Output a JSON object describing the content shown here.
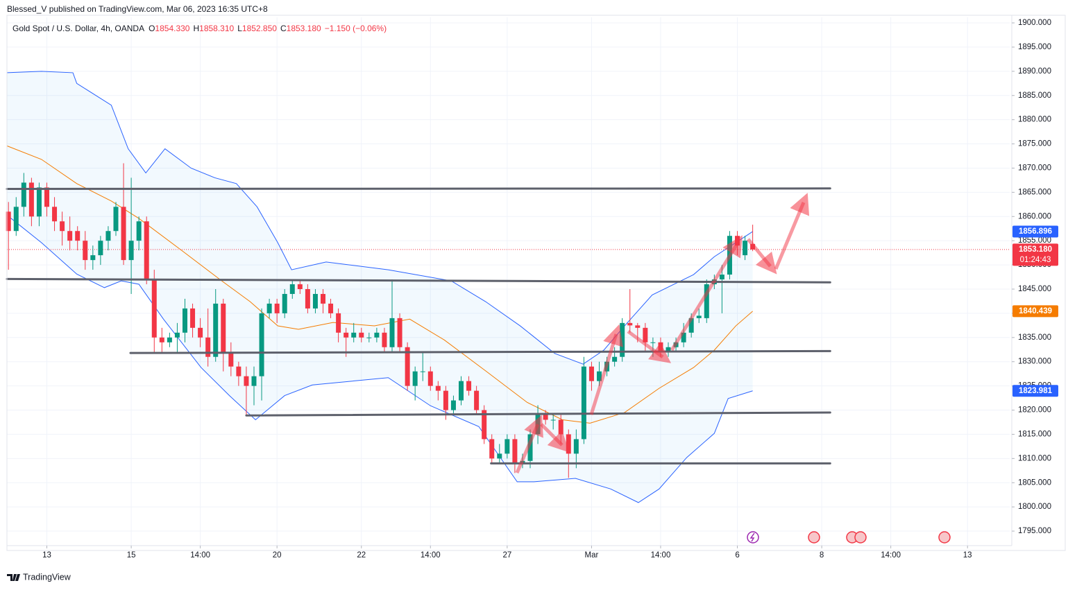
{
  "header": {
    "publisher": "Blessed_V published on TradingView.com, Mar 06, 2023 16:35 UTC+8"
  },
  "footer": {
    "brand": "TradingView"
  },
  "chart_data": {
    "type": "candlestick",
    "symbol": "Gold Spot / U.S. Dollar, 4h, OANDA",
    "legend_values": [
      {
        "key": "O",
        "value": "1854.330"
      },
      {
        "key": "H",
        "value": "1858.310"
      },
      {
        "key": "L",
        "value": "1852.850"
      },
      {
        "key": "C",
        "value": "1853.180"
      }
    ],
    "change": "−1.150 (−0.06%)",
    "open": [
      1861,
      1857,
      1862,
      1867,
      1860,
      1866,
      1862,
      1859,
      1857,
      1857,
      1855,
      1851,
      1852,
      1855,
      1857,
      1862,
      1851,
      1855,
      1859,
      1847,
      1835,
      1834,
      1835,
      1836,
      1841,
      1837,
      1835,
      1831,
      1842,
      1832,
      1829,
      1827,
      1825,
      1827,
      1840,
      1842,
      1840,
      1844,
      1846,
      1845,
      1841,
      1844,
      1842,
      1840,
      1836,
      1835,
      1836,
      1835,
      1835,
      1836,
      1833,
      1839,
      1833,
      1825,
      1828,
      1828,
      1825,
      1824,
      1820,
      1822,
      1826,
      1824,
      1820,
      1814,
      1810,
      1811,
      1814,
      1809,
      1809.5,
      1815,
      1819,
      1818,
      1818,
      1815,
      1811,
      1814,
      1829,
      1826,
      1828,
      1830,
      1831,
      1838,
      1837.5,
      1837,
      1834,
      1834,
      1832,
      1833,
      1834,
      1836,
      1839,
      1839,
      1846,
      1847,
      1848,
      1856,
      1852,
      1854.33
    ],
    "high": [
      1863,
      1864,
      1869,
      1868,
      1867,
      1867,
      1864,
      1861,
      1860,
      1858,
      1857,
      1854,
      1856,
      1858,
      1863,
      1871,
      1868,
      1860,
      1860,
      1849,
      1837,
      1836,
      1838,
      1843,
      1842,
      1839,
      1841,
      1845,
      1843,
      1834,
      1830,
      1829,
      1829,
      1841,
      1843,
      1843,
      1845,
      1847,
      1847,
      1846,
      1845,
      1845,
      1843,
      1841,
      1837,
      1838,
      1837,
      1836,
      1837,
      1837,
      1847,
      1840,
      1834,
      1829,
      1832,
      1829,
      1826,
      1825,
      1823,
      1827,
      1827,
      1825,
      1821,
      1815,
      1813,
      1815,
      1815,
      1811,
      1816,
      1821,
      1820,
      1819,
      1819,
      1816,
      1816,
      1831,
      1830,
      1830,
      1831,
      1833,
      1839,
      1845,
      1838,
      1838,
      1835,
      1835,
      1834,
      1835,
      1838,
      1840,
      1841,
      1847,
      1848,
      1850,
      1857,
      1857,
      1856,
      1858.31
    ],
    "low": [
      1849,
      1856,
      1860,
      1858,
      1858,
      1860,
      1857,
      1854,
      1853,
      1853,
      1849,
      1849,
      1850,
      1853,
      1856,
      1850,
      1844,
      1853,
      1846,
      1832,
      1832,
      1833,
      1832,
      1834,
      1835,
      1833,
      1829,
      1830,
      1828,
      1827,
      1825,
      1819,
      1821,
      1822,
      1839,
      1838,
      1839,
      1843,
      1844,
      1840,
      1840,
      1840,
      1839,
      1834,
      1831,
      1834,
      1834,
      1834,
      1834,
      1832,
      1832,
      1832,
      1824,
      1822,
      1826,
      1824,
      1822,
      1818,
      1819,
      1821,
      1823,
      1819,
      1813,
      1809,
      1809,
      1810,
      1807,
      1808,
      1808,
      1813,
      1817,
      1816,
      1813,
      1806,
      1808,
      1813,
      1824,
      1825,
      1827,
      1829,
      1830,
      1836,
      1834,
      1832,
      1831,
      1831,
      1831,
      1832,
      1833,
      1835,
      1838,
      1838,
      1845,
      1840,
      1847,
      1852,
      1851,
      1852.85
    ],
    "close": [
      1857,
      1862,
      1867,
      1860,
      1866,
      1862,
      1859,
      1857,
      1855,
      1855,
      1851,
      1852,
      1855,
      1857,
      1862,
      1851,
      1855,
      1859,
      1847,
      1835,
      1834,
      1835,
      1836,
      1841,
      1837,
      1835,
      1831,
      1842,
      1832,
      1829,
      1827,
      1825,
      1827,
      1840,
      1842,
      1840,
      1844,
      1846,
      1845,
      1841,
      1844,
      1842,
      1840,
      1836,
      1835,
      1836,
      1835,
      1835,
      1836,
      1833,
      1839,
      1833,
      1825,
      1828,
      1828,
      1825,
      1824,
      1820,
      1822,
      1826,
      1824,
      1820,
      1814,
      1810,
      1811,
      1814,
      1809,
      1809.5,
      1815,
      1819,
      1818,
      1818,
      1815,
      1811,
      1814,
      1829,
      1826,
      1828,
      1830,
      1831,
      1838,
      1837.5,
      1837,
      1834,
      1834,
      1832,
      1833,
      1834,
      1836,
      1839,
      1839.5,
      1846,
      1847,
      1848,
      1856,
      1854,
      1855,
      1853.18
    ],
    "up_color": "#089981",
    "down_color": "#f23645",
    "xlim": [
      -0.2,
      130.5
    ],
    "xticks": [
      {
        "value": 5,
        "label": "13"
      },
      {
        "value": 16,
        "label": "15"
      },
      {
        "value": 25,
        "label": "14:00"
      },
      {
        "value": 35,
        "label": "20"
      },
      {
        "value": 46,
        "label": "22"
      },
      {
        "value": 55,
        "label": "14:00"
      },
      {
        "value": 65,
        "label": "27"
      },
      {
        "value": 76,
        "label": "Mar"
      },
      {
        "value": 85,
        "label": "14:00"
      },
      {
        "value": 95,
        "label": "6"
      },
      {
        "value": 106,
        "label": "8"
      },
      {
        "value": 115,
        "label": "14:00"
      },
      {
        "value": 125,
        "label": "13"
      }
    ],
    "ylim": [
      1792.0,
      1901.15
    ],
    "yticks": [
      {
        "value": 1795,
        "label": "1795.000"
      },
      {
        "value": 1800,
        "label": "1800.000"
      },
      {
        "value": 1805,
        "label": "1805.000"
      },
      {
        "value": 1810,
        "label": "1810.000"
      },
      {
        "value": 1815,
        "label": "1815.000"
      },
      {
        "value": 1820,
        "label": "1820.000"
      },
      {
        "value": 1825,
        "label": "1825.000"
      },
      {
        "value": 1830,
        "label": "1830.000"
      },
      {
        "value": 1835,
        "label": "1835.000"
      },
      {
        "value": 1840,
        "label": "1840.000"
      },
      {
        "value": 1845,
        "label": "1845.000"
      },
      {
        "value": 1850,
        "label": "1850.000"
      },
      {
        "value": 1855,
        "label": "1855.000"
      },
      {
        "value": 1860,
        "label": "1860.000"
      },
      {
        "value": 1865,
        "label": "1865.000"
      },
      {
        "value": 1870,
        "label": "1870.000"
      },
      {
        "value": 1875,
        "label": "1875.000"
      },
      {
        "value": 1880,
        "label": "1880.000"
      },
      {
        "value": 1885,
        "label": "1885.000"
      },
      {
        "value": 1890,
        "label": "1890.000"
      },
      {
        "value": 1895,
        "label": "1895.000"
      },
      {
        "value": 1900,
        "label": "1900.000"
      }
    ],
    "grid": true,
    "band_fill": "rgba(33,150,243,0.06)",
    "bands": [
      {
        "color": "#2962ff",
        "x": [
          -0.2,
          4.3,
          8.4,
          8.9,
          13.4,
          15.6,
          17.9,
          20.4,
          23.8,
          26.9,
          29.7,
          32.4,
          35.1,
          36.9,
          41.4,
          49.5,
          57.7,
          62.2,
          66.7,
          71.2,
          74.9,
          77.6,
          80.3,
          83.9,
          89.3,
          92.0,
          94.8,
          97
        ],
        "values": [
          1889.7,
          1890.0,
          1889.7,
          1887.5,
          1883,
          1874,
          1869,
          1874,
          1870,
          1868,
          1866.8,
          1862,
          1854.6,
          1849,
          1850.6,
          1849,
          1846.7,
          1842.4,
          1837.4,
          1831.7,
          1829.5,
          1832.4,
          1837.4,
          1843.8,
          1848,
          1851.7,
          1854.6,
          1856.896
        ]
      },
      {
        "color": "#f57c00",
        "x": [
          -0.2,
          4.3,
          8.9,
          13.4,
          17.0,
          22.4,
          27.8,
          31.5,
          35.1,
          37.8,
          42.3,
          47.7,
          52.3,
          56.8,
          62.2,
          67.6,
          72.2,
          75.8,
          80.3,
          84.8,
          89.3,
          92.0,
          94.8,
          97
        ],
        "values": [
          1874.6,
          1871.8,
          1866.8,
          1863.2,
          1859.6,
          1853.2,
          1846.7,
          1842.4,
          1837.4,
          1836.7,
          1838.1,
          1837.4,
          1838.8,
          1834.5,
          1828.1,
          1821.6,
          1818,
          1817.3,
          1819.5,
          1824.5,
          1828.8,
          1832.4,
          1837.4,
          1840.439
        ]
      },
      {
        "color": "#2962ff",
        "x": [
          -0.2,
          4.3,
          8.9,
          12.5,
          14.7,
          17.0,
          20.2,
          25.1,
          28.8,
          32.2,
          36.0,
          39.6,
          49.5,
          55.0,
          61.3,
          66.3,
          68.5,
          73.9,
          78.5,
          82.1,
          84.8,
          88.4,
          92.0,
          93.8,
          97
        ],
        "values": [
          1860.3,
          1854.6,
          1848.1,
          1845.3,
          1846.7,
          1846,
          1838.8,
          1828.8,
          1823,
          1818,
          1823,
          1825.2,
          1826.7,
          1820.9,
          1816.6,
          1805.2,
          1805.2,
          1805.9,
          1803.7,
          1800.9,
          1803.7,
          1810.2,
          1815.2,
          1822.4,
          1823.981
        ]
      }
    ],
    "levels": [
      {
        "x": [
          -0.2,
          107.1
        ],
        "y": [
          1865.7,
          1865.8
        ]
      },
      {
        "x": [
          -0.2,
          107.1
        ],
        "y": [
          1847.1,
          1846.4
        ]
      },
      {
        "x": [
          15.9,
          107.1
        ],
        "y": [
          1831.8,
          1832.2
        ]
      },
      {
        "x": [
          31.0,
          107.1
        ],
        "y": [
          1818.9,
          1819.5
        ]
      },
      {
        "x": [
          62.9,
          107.1
        ],
        "y": [
          1809.0,
          1809.0
        ]
      }
    ],
    "level_color": "#5d606b",
    "price_labels": [
      {
        "value": 1856.896,
        "label": "1856.896",
        "color": "#2962ff"
      },
      {
        "value": 1853.18,
        "label": "1853.180",
        "countdown": "01:24:43",
        "color": "#f23645"
      },
      {
        "value": 1840.439,
        "label": "1840.439",
        "color": "#f57c00"
      },
      {
        "value": 1823.981,
        "label": "1823.981",
        "color": "#2962ff"
      }
    ]
  }
}
